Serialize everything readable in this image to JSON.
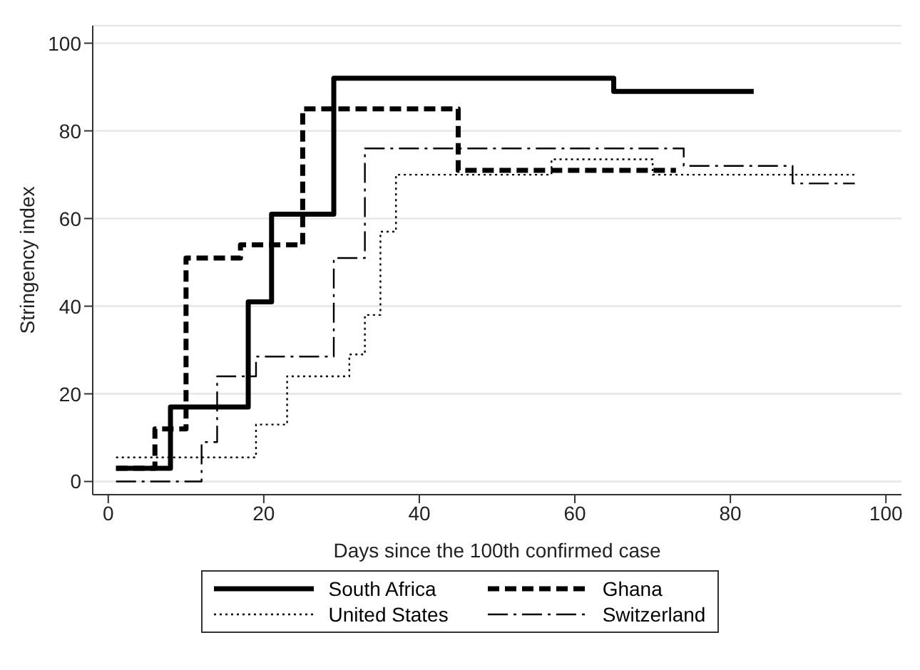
{
  "chart_data": {
    "type": "step",
    "xlabel": "Days since the 100th confirmed case",
    "ylabel": "Stringency index",
    "xlim": [
      -2,
      102
    ],
    "ylim": [
      -3,
      104
    ],
    "xticks": [
      0,
      20,
      40,
      60,
      80,
      100
    ],
    "yticks": [
      0,
      20,
      40,
      60,
      80,
      100
    ],
    "grid": "y",
    "legend": "bottom",
    "series": [
      {
        "name": "South Africa",
        "color": "#000000",
        "line_style": "solid",
        "x": [
          1,
          8,
          18,
          21,
          29,
          65,
          83
        ],
        "values": [
          3,
          17,
          41,
          61,
          92,
          89,
          89
        ]
      },
      {
        "name": "Ghana",
        "color": "#000000",
        "line_style": "dashed",
        "x": [
          1,
          6,
          10,
          17,
          25,
          45,
          73
        ],
        "values": [
          3,
          12,
          51,
          54,
          85,
          71,
          71
        ]
      },
      {
        "name": "United States",
        "color": "#000000",
        "line_style": "dotted",
        "x": [
          1,
          19,
          23,
          31,
          33,
          35,
          37,
          57,
          70,
          96
        ],
        "values": [
          5.5,
          13,
          24,
          29,
          38,
          57,
          70,
          73.5,
          70,
          70
        ]
      },
      {
        "name": "Switzerland",
        "color": "#000000",
        "line_style": "dashdot",
        "x": [
          1,
          12,
          14,
          19,
          29,
          33,
          74,
          88,
          96
        ],
        "values": [
          0,
          9,
          24,
          28.5,
          51,
          76,
          72,
          68,
          68
        ]
      }
    ]
  }
}
